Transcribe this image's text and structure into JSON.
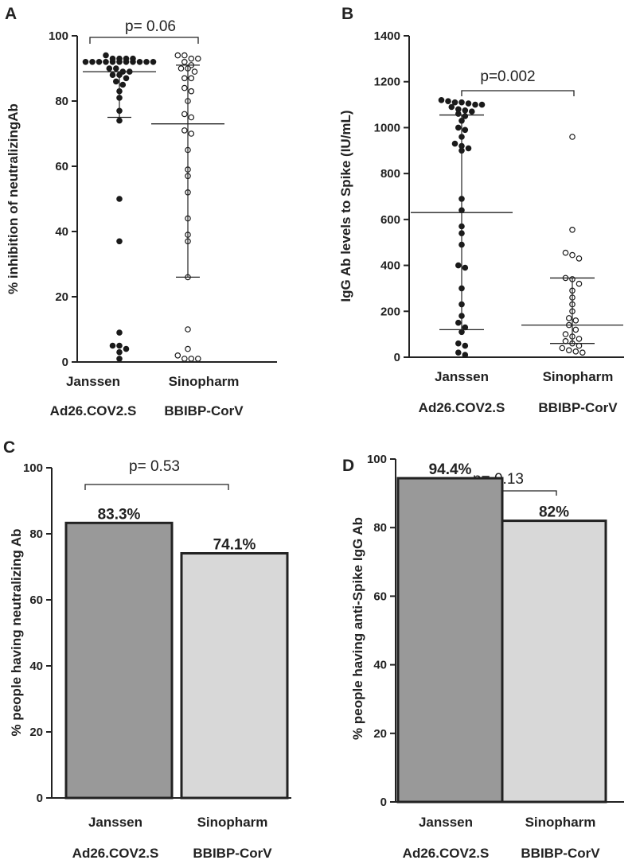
{
  "chart_data": [
    {
      "panel": "A",
      "type": "scatter",
      "ylabel": "% inhibition of neutralizingAb",
      "ylim": [
        0,
        100
      ],
      "yticks": [
        0,
        20,
        40,
        60,
        80,
        100
      ],
      "categories": [
        {
          "line1": "Janssen",
          "line2": "Ad26.COV2.S"
        },
        {
          "line1": "Sinopharm",
          "line2": "BBIBP-CorV"
        }
      ],
      "annotation": "p= 0.06",
      "series": [
        {
          "name": "Janssen Ad26.COV2.S",
          "marker": "filled",
          "values": [
            94,
            93,
            93,
            93,
            93,
            92,
            92,
            92,
            92,
            92,
            92,
            92,
            92,
            92,
            92,
            92,
            90,
            90,
            89,
            89,
            88,
            88,
            87,
            86,
            85,
            83,
            81,
            77,
            74,
            50,
            37,
            9,
            5,
            5,
            4,
            3,
            1
          ],
          "median": 89,
          "q1": 75,
          "q3": 89
        },
        {
          "name": "Sinopharm BBIBP-CorV",
          "marker": "open",
          "values": [
            94,
            94,
            93,
            93,
            92,
            91,
            90,
            90,
            89,
            87,
            87,
            84,
            83,
            80,
            76,
            75,
            71,
            70,
            65,
            59,
            57,
            52,
            44,
            39,
            37,
            26,
            10,
            4,
            2,
            1,
            1,
            1
          ],
          "median": 73,
          "q1": 26,
          "q3": 91
        }
      ]
    },
    {
      "panel": "B",
      "type": "scatter",
      "ylabel": "IgG Ab levels to Spike (IU/mL)",
      "ylim": [
        0,
        1400
      ],
      "yticks": [
        0,
        200,
        400,
        600,
        800,
        1000,
        1200,
        1400
      ],
      "categories": [
        {
          "line1": "Janssen",
          "line2": "Ad26.COV2.S"
        },
        {
          "line1": "Sinopharm",
          "line2": "BBIBP-CorV"
        }
      ],
      "annotation": "p=0.002",
      "series": [
        {
          "name": "Janssen Ad26.COV2.S",
          "marker": "filled",
          "values": [
            1120,
            1115,
            1110,
            1110,
            1105,
            1100,
            1100,
            1090,
            1080,
            1075,
            1070,
            1060,
            1050,
            1030,
            1000,
            990,
            960,
            930,
            920,
            910,
            900,
            690,
            640,
            570,
            540,
            490,
            400,
            390,
            300,
            230,
            180,
            150,
            130,
            110,
            60,
            50,
            20,
            10
          ],
          "median": 630,
          "q1": 120,
          "q3": 1055
        },
        {
          "name": "Sinopharm BBIBP-CorV",
          "marker": "open",
          "values": [
            960,
            555,
            455,
            445,
            430,
            345,
            340,
            320,
            290,
            260,
            230,
            200,
            170,
            160,
            140,
            120,
            100,
            90,
            80,
            70,
            60,
            50,
            40,
            30,
            25,
            20
          ],
          "median": 140,
          "q1": 60,
          "q3": 345
        }
      ]
    },
    {
      "panel": "C",
      "type": "bar",
      "ylabel": "% people having neutralizing Ab",
      "ylim": [
        0,
        100
      ],
      "yticks": [
        0,
        20,
        40,
        60,
        80,
        100
      ],
      "categories": [
        {
          "line1": "Janssen",
          "line2": "Ad26.COV2.S"
        },
        {
          "line1": "Sinopharm",
          "line2": "BBIBP-CorV"
        }
      ],
      "values": [
        83.3,
        74.1
      ],
      "labels": [
        "83.3%",
        "74.1%"
      ],
      "colors": [
        "#999999",
        "#d8d8d8"
      ],
      "annotation": "p= 0.53"
    },
    {
      "panel": "D",
      "type": "bar",
      "ylabel": "% people having anti-Spike IgG Ab",
      "ylim": [
        0,
        100
      ],
      "yticks": [
        0,
        20,
        40,
        60,
        80,
        100
      ],
      "categories": [
        {
          "line1": "Janssen",
          "line2": "Ad26.COV2.S"
        },
        {
          "line1": "Sinopharm",
          "line2": "BBIBP-CorV"
        }
      ],
      "values": [
        94.4,
        82
      ],
      "labels": [
        "94.4%",
        "82%"
      ],
      "colors": [
        "#999999",
        "#d8d8d8"
      ],
      "annotation": "p= 0.13"
    }
  ]
}
